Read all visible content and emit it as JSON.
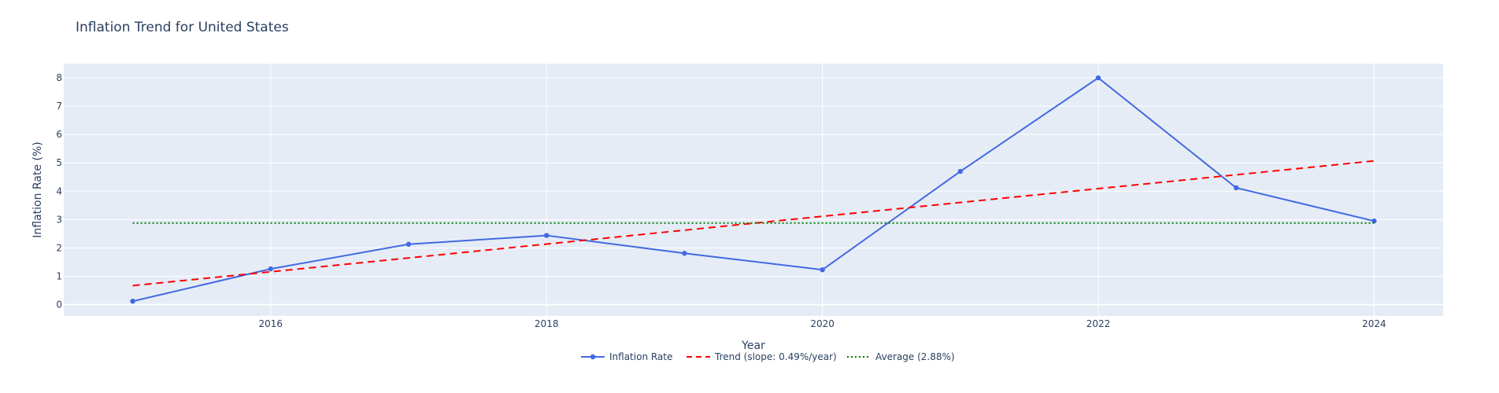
{
  "chart_data": {
    "type": "line",
    "title": "Inflation Trend for United States",
    "xlabel": "Year",
    "ylabel": "Inflation Rate (%)",
    "xlim": [
      2014.5,
      2024.5
    ],
    "ylim": [
      -0.4,
      8.5
    ],
    "x_ticks": [
      2016,
      2018,
      2020,
      2022,
      2024
    ],
    "y_ticks": [
      0,
      1,
      2,
      3,
      4,
      5,
      6,
      7,
      8
    ],
    "grid": true,
    "legend_position": "bottom-center",
    "background_color": "#e5ecf6",
    "series": [
      {
        "name": "Inflation Rate",
        "style": "lines+markers",
        "color": "#4169e1",
        "x": [
          2015,
          2016,
          2017,
          2018,
          2019,
          2020,
          2021,
          2022,
          2023,
          2024
        ],
        "y": [
          0.12,
          1.26,
          2.13,
          2.44,
          1.81,
          1.23,
          4.7,
          8.0,
          4.12,
          2.95
        ]
      },
      {
        "name": "Trend (slope: 0.49%/year)",
        "style": "dash",
        "color": "#ff0000",
        "x": [
          2015,
          2024
        ],
        "y": [
          0.67,
          5.07
        ]
      },
      {
        "name": "Average (2.88%)",
        "style": "dot",
        "color": "#008000",
        "x": [
          2015,
          2024
        ],
        "y": [
          2.88,
          2.88
        ]
      }
    ]
  }
}
